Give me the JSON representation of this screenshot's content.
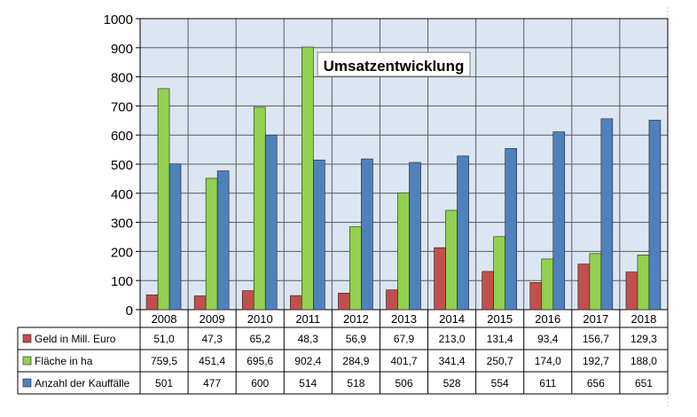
{
  "chart_data": {
    "type": "bar",
    "title": "Umsatzentwicklung",
    "categories": [
      "2008",
      "2009",
      "2010",
      "2011",
      "2012",
      "2013",
      "2014",
      "2015",
      "2016",
      "2017",
      "2018"
    ],
    "ylim": [
      0,
      1000
    ],
    "yticks": [
      "0",
      "100",
      "200",
      "300",
      "400",
      "500",
      "600",
      "700",
      "800",
      "900",
      "1000"
    ],
    "grid": true,
    "series": [
      {
        "name": "Geld in Mill. Euro",
        "color": "#c0504d",
        "values": [
          51.0,
          47.3,
          65.2,
          48.3,
          56.9,
          67.9,
          213.0,
          131.4,
          93.4,
          156.7,
          129.3
        ],
        "labels": [
          "51,0",
          "47,3",
          "65,2",
          "48,3",
          "56,9",
          "67,9",
          "213,0",
          "131,4",
          "93,4",
          "156,7",
          "129,3"
        ]
      },
      {
        "name": "Fläche in ha",
        "color": "#92d050",
        "values": [
          759.5,
          451.4,
          695.6,
          902.4,
          284.9,
          401.7,
          341.4,
          250.7,
          174.0,
          192.7,
          188.0
        ],
        "labels": [
          "759,5",
          "451,4",
          "695,6",
          "902,4",
          "284,9",
          "401,7",
          "341,4",
          "250,7",
          "174,0",
          "192,7",
          "188,0"
        ]
      },
      {
        "name": "Anzahl der Kauffälle",
        "color": "#4f81bd",
        "values": [
          501,
          477,
          600,
          514,
          518,
          506,
          528,
          554,
          611,
          656,
          651
        ],
        "labels": [
          "501",
          "477",
          "600",
          "514",
          "518",
          "506",
          "528",
          "554",
          "611",
          "656",
          "651"
        ]
      }
    ],
    "colors": {
      "plot_bg": "#dce6f2",
      "grid": "#5a5a5a"
    }
  }
}
